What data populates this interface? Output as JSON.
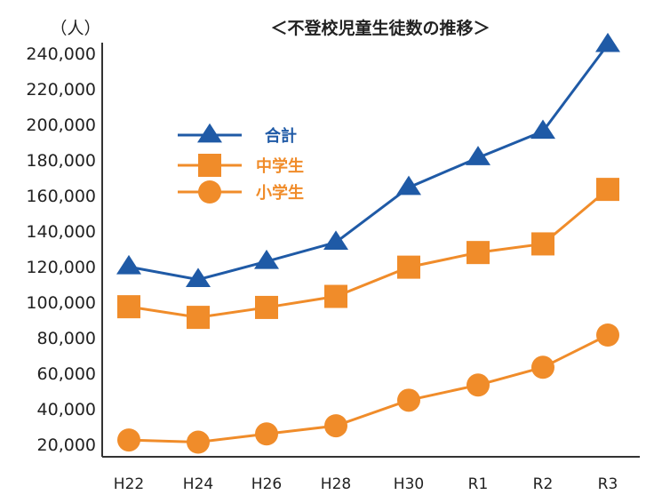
{
  "chart_data": {
    "type": "line",
    "title": "＜不登校児童生徒数の推移＞",
    "ylabel": "（人）",
    "xlabel": "",
    "categories": [
      "H22",
      "H24",
      "H26",
      "H28",
      "H30",
      "R1",
      "R2",
      "R3"
    ],
    "ylim": [
      10000,
      240000
    ],
    "yticks": [
      20000,
      40000,
      60000,
      80000,
      100000,
      120000,
      140000,
      160000,
      180000,
      200000,
      220000,
      240000
    ],
    "ytick_labels": [
      "20,000",
      "40,000",
      "60,000",
      "80,000",
      "100,000",
      "120,000",
      "140,000",
      "160,000",
      "180,000",
      "200,000",
      "220,000",
      "240,000"
    ],
    "grid": false,
    "legend_position": "upper-left",
    "series": [
      {
        "name": "合計",
        "marker": "triangle",
        "color": "#1f5aa6",
        "values": [
          119891,
          112689,
          122897,
          133683,
          164528,
          181272,
          196127,
          244940
        ]
      },
      {
        "name": "中学生",
        "marker": "square",
        "color": "#f08c2a",
        "values": [
          97428,
          91446,
          97033,
          103235,
          119687,
          127922,
          132777,
          163442
        ]
      },
      {
        "name": "小学生",
        "marker": "circle",
        "color": "#f08c2a",
        "values": [
          22463,
          21243,
          25864,
          30448,
          44841,
          53350,
          63350,
          81498
        ]
      }
    ]
  }
}
